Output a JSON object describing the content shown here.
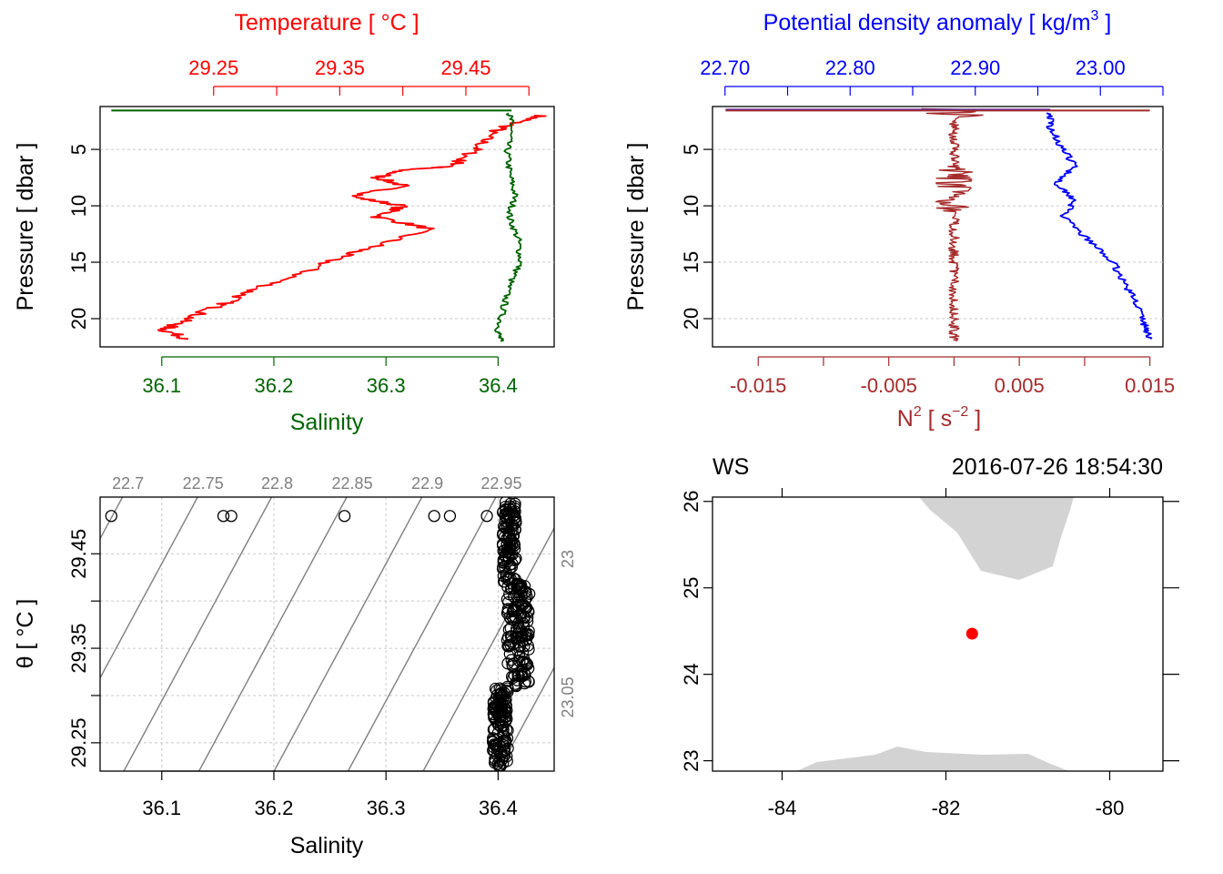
{
  "chart_data": [
    {
      "type": "line",
      "panel": "temperature-salinity-profile",
      "y_axis": {
        "label": "Pressure [ dbar ]",
        "ticks": [
          "5",
          "10",
          "15",
          "20"
        ],
        "range": [
          1.2,
          22.5
        ],
        "reversed": true
      },
      "top_axis": {
        "title": "Temperature [ °C ]",
        "ticks": [
          "29.25",
          "29.35",
          "29.45"
        ],
        "range": [
          29.16,
          29.52
        ],
        "color": "#ff0000"
      },
      "bottom_axis": {
        "title": "Salinity",
        "ticks": [
          "36.1",
          "36.2",
          "36.3",
          "36.4"
        ],
        "range": [
          36.045,
          36.45
        ],
        "color": "#006400"
      },
      "series": [
        {
          "name": "Temperature",
          "axis": "top",
          "color": "#ff0000",
          "points": [
            [
              29.51,
              2.0
            ],
            [
              29.49,
              2.6
            ],
            [
              29.47,
              3.5
            ],
            [
              29.46,
              4.8
            ],
            [
              29.445,
              6.0
            ],
            [
              29.44,
              6.5
            ],
            [
              29.4,
              6.8
            ],
            [
              29.38,
              7.5
            ],
            [
              29.4,
              8.2
            ],
            [
              29.36,
              9.2
            ],
            [
              29.4,
              10.0
            ],
            [
              29.38,
              11.0
            ],
            [
              29.42,
              12.0
            ],
            [
              29.38,
              13.5
            ],
            [
              29.35,
              14.5
            ],
            [
              29.32,
              16.0
            ],
            [
              29.28,
              17.5
            ],
            [
              29.26,
              18.6
            ],
            [
              29.24,
              19.5
            ],
            [
              29.22,
              20.5
            ],
            [
              29.21,
              21.0
            ],
            [
              29.23,
              21.8
            ]
          ]
        },
        {
          "name": "Salinity",
          "axis": "bottom",
          "color": "#006400",
          "points": [
            [
              36.41,
              1.8
            ],
            [
              36.412,
              3
            ],
            [
              36.408,
              5
            ],
            [
              36.41,
              7
            ],
            [
              36.415,
              9
            ],
            [
              36.41,
              11
            ],
            [
              36.418,
              13
            ],
            [
              36.42,
              15
            ],
            [
              36.41,
              17
            ],
            [
              36.405,
              19
            ],
            [
              36.4,
              21
            ],
            [
              36.402,
              22
            ]
          ]
        }
      ],
      "surface_line_note": "green horizontal line at first sample"
    },
    {
      "type": "line",
      "panel": "density-n2-profile",
      "y_axis": {
        "label": "Pressure [ dbar ]",
        "ticks": [
          "5",
          "10",
          "15",
          "20"
        ],
        "range": [
          1.2,
          22.5
        ],
        "reversed": true
      },
      "top_axis": {
        "title": "Potential density anomaly [ kg/m",
        "title_sup": "3",
        "title_end": " ]",
        "ticks": [
          "22.70",
          "22.80",
          "22.90",
          "23.00"
        ],
        "range": [
          22.69,
          23.05
        ],
        "color": "#0000ff"
      },
      "bottom_axis": {
        "title": "N",
        "title_sup": "2",
        "title_mid": " [ s",
        "title_sup2": "−2",
        "title_end": " ]",
        "ticks": [
          "-0.015",
          "-0.005",
          "0.005",
          "0.015"
        ],
        "range": [
          -0.0185,
          0.016
        ],
        "color": "#a52a2a"
      },
      "series": [
        {
          "name": "Potential density anomaly",
          "axis": "top",
          "color": "#0000ff",
          "points": [
            [
              22.96,
              1.8
            ],
            [
              22.96,
              3.0
            ],
            [
              22.97,
              5.0
            ],
            [
              22.98,
              6.5
            ],
            [
              22.965,
              8.0
            ],
            [
              22.98,
              9.5
            ],
            [
              22.97,
              11.0
            ],
            [
              22.99,
              13.0
            ],
            [
              23.01,
              15.0
            ],
            [
              23.02,
              17.0
            ],
            [
              23.03,
              18.8
            ],
            [
              23.035,
              20.5
            ],
            [
              23.04,
              21.8
            ]
          ]
        },
        {
          "name": "N2",
          "axis": "bottom",
          "color": "#a52a2a",
          "points": [
            [
              0.0,
              1.5
            ],
            [
              0.0,
              3
            ],
            [
              0.0,
              5
            ],
            [
              0.0,
              7
            ],
            [
              0.0,
              9
            ],
            [
              0.0,
              11
            ],
            [
              0.0,
              13
            ],
            [
              0.0,
              15
            ],
            [
              0.0,
              17
            ],
            [
              0.0,
              19
            ],
            [
              0.0,
              21
            ],
            [
              0.0,
              22
            ]
          ]
        }
      ]
    },
    {
      "type": "scatter",
      "panel": "ts-diagram",
      "x_axis": {
        "label": "Salinity",
        "ticks": [
          "36.1",
          "36.2",
          "36.3",
          "36.4"
        ],
        "range": [
          36.045,
          36.45
        ]
      },
      "y_axis": {
        "label": "θ [ °C ]",
        "ticks": [
          "29.25",
          "29.35",
          "29.45"
        ],
        "range": [
          29.22,
          29.51
        ]
      },
      "isopycnal_labels": [
        "22.7",
        "22.75",
        "22.8",
        "22.85",
        "22.9",
        "22.95",
        "23",
        "23.05"
      ],
      "outliers": [
        [
          36.055,
          29.49
        ],
        [
          36.155,
          29.49
        ],
        [
          36.162,
          29.49
        ],
        [
          36.263,
          29.49
        ],
        [
          36.343,
          29.49
        ],
        [
          36.357,
          29.49
        ],
        [
          36.39,
          29.49
        ]
      ]
    },
    {
      "type": "map",
      "panel": "location-map",
      "station": "WS",
      "datetime": "2016-07-26 18:54:30",
      "x_axis": {
        "ticks": [
          "-84",
          "-82",
          "-80"
        ],
        "range": [
          -84.85,
          -79.35
        ]
      },
      "y_axis": {
        "ticks": [
          "23",
          "24",
          "25",
          "26"
        ],
        "range": [
          22.88,
          26.05
        ]
      },
      "station_location": {
        "lon": -81.68,
        "lat": 24.47,
        "color": "#ff0000"
      }
    }
  ]
}
